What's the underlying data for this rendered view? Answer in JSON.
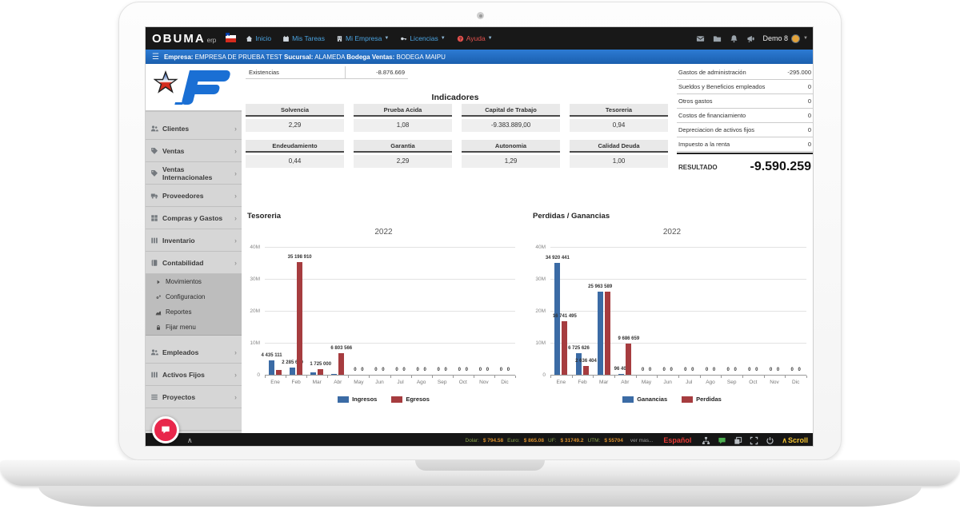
{
  "navbar": {
    "brand": "OBUMA",
    "brand_suffix": "erp",
    "items": [
      {
        "label": "Inicio",
        "icon": "home-icon",
        "caret": false,
        "danger": false
      },
      {
        "label": "Mis Tareas",
        "icon": "calendar-icon",
        "caret": false,
        "danger": false
      },
      {
        "label": "Mi Empresa",
        "icon": "building-icon",
        "caret": true,
        "danger": false
      },
      {
        "label": "Licencias",
        "icon": "key-icon",
        "caret": true,
        "danger": false
      },
      {
        "label": "Ayuda",
        "icon": "help-icon",
        "caret": true,
        "danger": true
      }
    ],
    "right_icons": [
      "envelope-icon",
      "folder-icon",
      "bell-icon",
      "megaphone-icon"
    ],
    "user": "Demo 8"
  },
  "context_bar": {
    "empresa_label": "Empresa:",
    "empresa": "EMPRESA DE PRUEBA TEST",
    "sucursal_label": "Sucursal:",
    "sucursal": "ALAMEDA",
    "bodega_label": "Bodega Ventas:",
    "bodega": "BODEGA MAIPU"
  },
  "sidebar": {
    "items": [
      {
        "label": "Clientes",
        "icon": "users-icon"
      },
      {
        "label": "Ventas",
        "icon": "tag-icon"
      },
      {
        "label": "Ventas Internacionales",
        "icon": "tag-icon"
      },
      {
        "label": "Proveedores",
        "icon": "truck-icon"
      },
      {
        "label": "Compras y Gastos",
        "icon": "grid-icon"
      },
      {
        "label": "Inventario",
        "icon": "bars-icon"
      },
      {
        "label": "Contabilidad",
        "icon": "book-icon"
      }
    ],
    "submenu": [
      {
        "label": "Movimientos",
        "icon": "caret-right-icon"
      },
      {
        "label": "Configuracion",
        "icon": "gears-icon"
      },
      {
        "label": "Reportes",
        "icon": "chart-icon"
      },
      {
        "label": "Fijar menu",
        "icon": "lock-icon"
      }
    ],
    "items2": [
      {
        "label": "Empleados",
        "icon": "users-icon"
      },
      {
        "label": "Activos Fijos",
        "icon": "bars-icon"
      },
      {
        "label": "Proyectos",
        "icon": "list-icon"
      }
    ]
  },
  "summary": {
    "existencias_label": "Existencias",
    "existencias_value": "-8.876.669"
  },
  "indicators": {
    "title": "Indicadores",
    "cards": [
      {
        "label": "Solvencia",
        "value": "2,29"
      },
      {
        "label": "Prueba Acida",
        "value": "1,08"
      },
      {
        "label": "Capital de Trabajo",
        "value": "-9.383.889,00"
      },
      {
        "label": "Tesoreria",
        "value": "0,94"
      },
      {
        "label": "Endeudamiento",
        "value": "0,44"
      },
      {
        "label": "Garantia",
        "value": "2,29"
      },
      {
        "label": "Autonomia",
        "value": "1,29"
      },
      {
        "label": "Calidad Deuda",
        "value": "1,00"
      }
    ]
  },
  "expenses": {
    "rows": [
      {
        "label": "Gastos de administración",
        "value": "-295.000"
      },
      {
        "label": "Sueldos y Beneficios empleados",
        "value": "0"
      },
      {
        "label": "Otros gastos",
        "value": "0"
      },
      {
        "label": "Costos de financiamiento",
        "value": "0"
      },
      {
        "label": "Depreciacion de activos fijos",
        "value": "0"
      },
      {
        "label": "Impuesto a la renta",
        "value": "0"
      }
    ],
    "result_label": "RESULTADO",
    "result_value": "-9.590.259"
  },
  "chart_data": [
    {
      "type": "bar",
      "title": "Tesoreria",
      "chart_title": "2022",
      "categories": [
        "Ene",
        "Feb",
        "Mar",
        "Abr",
        "May",
        "Jun",
        "Jul",
        "Ago",
        "Sep",
        "Oct",
        "Nov",
        "Dic"
      ],
      "ylim": [
        0,
        40000000
      ],
      "y_ticks": [
        "0",
        "10M",
        "20M",
        "30M",
        "40M"
      ],
      "grid": true,
      "legend_position": "bottom",
      "series": [
        {
          "name": "Ingresos",
          "color": "#3b6ba5",
          "values": [
            4435111,
            2285620,
            750000,
            350000,
            0,
            0,
            0,
            0,
            0,
            0,
            0,
            0
          ],
          "labels": [
            "4 435 111",
            "2 285 620",
            "",
            "",
            "0",
            "0",
            "0",
            "0",
            "0",
            "0",
            "0",
            "0"
          ]
        },
        {
          "name": "Egresos",
          "color": "#a63c3f",
          "values": [
            1500000,
            35198910,
            1725000,
            6803566,
            0,
            0,
            0,
            0,
            0,
            0,
            0,
            0
          ],
          "labels": [
            "",
            "35 198 910",
            "1 725 000",
            "6 803 566",
            "0",
            "0",
            "0",
            "0",
            "0",
            "0",
            "0",
            "0"
          ]
        }
      ]
    },
    {
      "type": "bar",
      "title": "Perdidas / Ganancias",
      "chart_title": "2022",
      "categories": [
        "Ene",
        "Feb",
        "Mar",
        "Abr",
        "May",
        "Jun",
        "Jul",
        "Ago",
        "Sep",
        "Oct",
        "Nov",
        "Dic"
      ],
      "ylim": [
        0,
        40000000
      ],
      "y_ticks": [
        "0",
        "10M",
        "20M",
        "30M",
        "40M"
      ],
      "grid": true,
      "legend_position": "bottom",
      "series": [
        {
          "name": "Ganancias",
          "color": "#3b6ba5",
          "values": [
            34920441,
            6725626,
            25963589,
            96400,
            0,
            0,
            0,
            0,
            0,
            0,
            0,
            0
          ],
          "labels": [
            "34 920 441",
            "6 725 626",
            "25 963 589",
            "96 400",
            "0",
            "0",
            "0",
            "0",
            "0",
            "0",
            "0",
            "0"
          ]
        },
        {
          "name": "Perdidas",
          "color": "#a63c3f",
          "values": [
            16741495,
            2636404,
            25900000,
            9686659,
            0,
            0,
            0,
            0,
            0,
            0,
            0,
            0
          ],
          "labels": [
            "16 741 495",
            "2 636 404",
            "",
            "9 686 659",
            "0",
            "0",
            "0",
            "0",
            "0",
            "0",
            "0",
            "0"
          ]
        }
      ]
    }
  ],
  "footer": {
    "currencies": [
      {
        "label": "Dolar:",
        "value": "$ 794.58"
      },
      {
        "label": "Euro:",
        "value": "$ 865.08"
      },
      {
        "label": "UF:",
        "value": "$ 31749.2"
      },
      {
        "label": "UTM:",
        "value": "$ 55704"
      }
    ],
    "more": "ver mas...",
    "language": "Español",
    "icons": [
      "sitemap-icon",
      "chat-icon",
      "stack-icon",
      "expand-icon",
      "power-icon"
    ],
    "scroll_label": "Scroll"
  }
}
